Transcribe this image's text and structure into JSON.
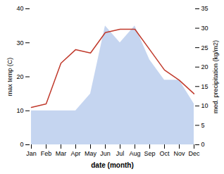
{
  "chart_data": {
    "type": "line",
    "categories": [
      "Jan",
      "Feb",
      "Mar",
      "Apr",
      "May",
      "Jun",
      "Jul",
      "Aug",
      "Sep",
      "Oct",
      "Nov",
      "Dec"
    ],
    "series": [
      {
        "type": "area",
        "color": "#c5d5f0",
        "values": [
          10,
          10,
          10,
          10,
          15,
          35,
          30,
          35,
          25,
          19,
          19,
          12
        ]
      },
      {
        "type": "line",
        "color": "#c0392b",
        "values": [
          11,
          12,
          24,
          28,
          27,
          33,
          34,
          34,
          28,
          22,
          19,
          15
        ]
      }
    ],
    "xlabel": "date (month)",
    "ylabel": "max temp (C)",
    "y2label": "med. precipitation (kg/m2)",
    "ylim": [
      0,
      40
    ],
    "yticks": [
      0,
      10,
      20,
      30,
      40
    ],
    "y2lim": [
      0,
      35
    ],
    "y2ticks": [
      0,
      5,
      10,
      15,
      20,
      25,
      30,
      35
    ],
    "grid": false
  }
}
